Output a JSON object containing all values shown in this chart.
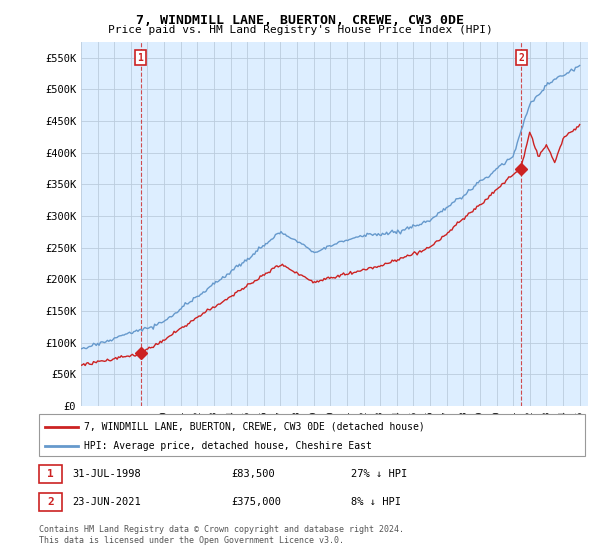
{
  "title": "7, WINDMILL LANE, BUERTON, CREWE, CW3 0DE",
  "subtitle": "Price paid vs. HM Land Registry's House Price Index (HPI)",
  "ylim": [
    0,
    575000
  ],
  "yticks": [
    0,
    50000,
    100000,
    150000,
    200000,
    250000,
    300000,
    350000,
    400000,
    450000,
    500000,
    550000
  ],
  "ytick_labels": [
    "£0",
    "£50K",
    "£100K",
    "£150K",
    "£200K",
    "£250K",
    "£300K",
    "£350K",
    "£400K",
    "£450K",
    "£500K",
    "£550K"
  ],
  "x_start_year": 1995,
  "x_end_year": 2025,
  "plot_bg_color": "#ddeeff",
  "background_color": "#ffffff",
  "grid_color": "#bbccdd",
  "hpi_color": "#6699cc",
  "price_color": "#cc2222",
  "sale1_date": 1998.58,
  "sale1_price": 83500,
  "sale1_label": "1",
  "sale1_hpi_pct": "27% ↓ HPI",
  "sale1_date_str": "31-JUL-1998",
  "sale1_price_str": "£83,500",
  "sale2_date": 2021.48,
  "sale2_price": 375000,
  "sale2_label": "2",
  "sale2_hpi_pct": "8% ↓ HPI",
  "sale2_date_str": "23-JUN-2021",
  "sale2_price_str": "£375,000",
  "legend_line1": "7, WINDMILL LANE, BUERTON, CREWE, CW3 0DE (detached house)",
  "legend_line2": "HPI: Average price, detached house, Cheshire East",
  "footnote": "Contains HM Land Registry data © Crown copyright and database right 2024.\nThis data is licensed under the Open Government Licence v3.0."
}
